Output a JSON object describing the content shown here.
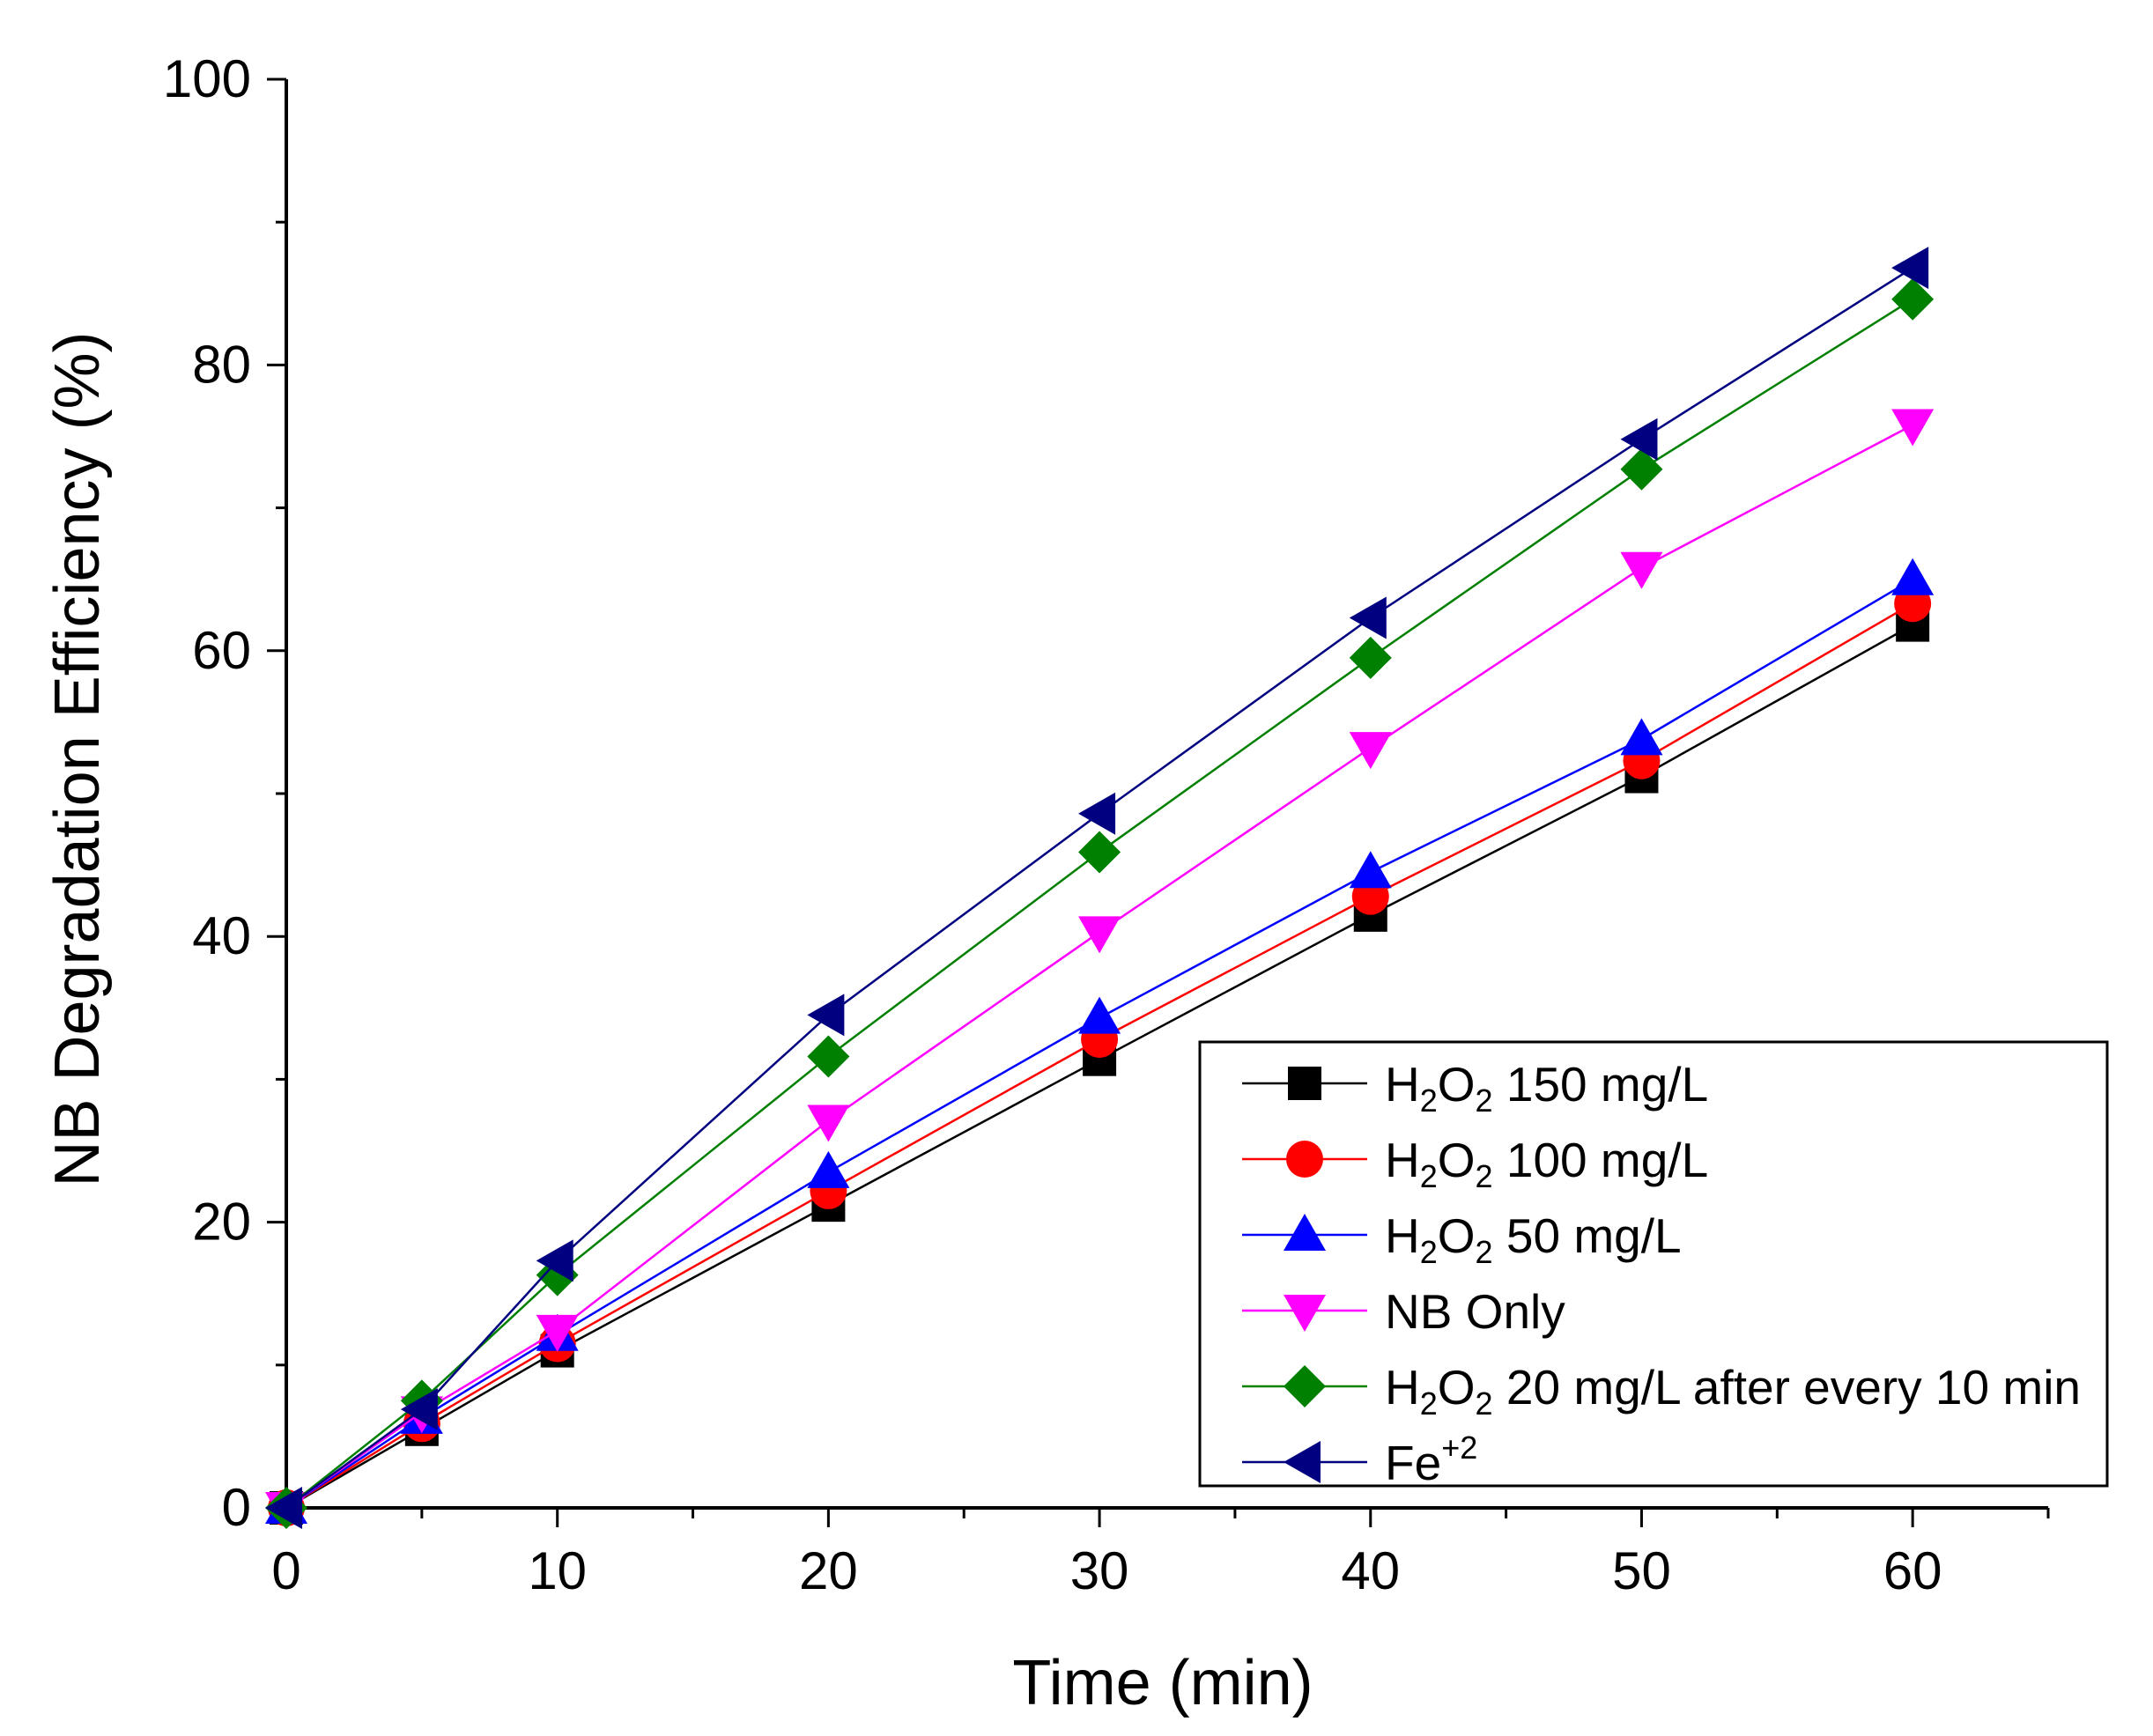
{
  "chart_data": {
    "type": "line",
    "title": "",
    "xlabel": "Time (min)",
    "ylabel": "NB Degradation Efficiency (%)",
    "xlim": [
      0,
      65
    ],
    "ylim": [
      0,
      100
    ],
    "xticks": [
      0,
      10,
      20,
      30,
      40,
      50,
      60
    ],
    "yticks": [
      0,
      20,
      40,
      60,
      80,
      100
    ],
    "grid": false,
    "legend_position": "bottom-right",
    "x": [
      0,
      5,
      10,
      20,
      30,
      40,
      50,
      60
    ],
    "series": [
      {
        "name": "H2O2 150 mg/L",
        "legend": {
          "parts": [
            {
              "t": "H"
            },
            {
              "t": "2",
              "sub": true
            },
            {
              "t": "O"
            },
            {
              "t": "2",
              "sub": true
            },
            {
              "t": " 150 mg/L"
            }
          ]
        },
        "marker": "square",
        "line_color": "#000000",
        "marker_color": "#000000",
        "values": [
          0,
          5.5,
          11,
          21.2,
          31.4,
          41.5,
          51.2,
          61.8
        ]
      },
      {
        "name": "H2O2 100 mg/L",
        "legend": {
          "parts": [
            {
              "t": "H"
            },
            {
              "t": "2",
              "sub": true
            },
            {
              "t": "O"
            },
            {
              "t": "2",
              "sub": true
            },
            {
              "t": " 100 mg/L"
            }
          ]
        },
        "marker": "circle",
        "line_color": "#ff0000",
        "marker_color": "#ff0000",
        "values": [
          0,
          5.9,
          11.5,
          22.2,
          32.8,
          42.8,
          52.3,
          63.3
        ]
      },
      {
        "name": "H2O2 50 mg/L",
        "legend": {
          "parts": [
            {
              "t": "H"
            },
            {
              "t": "2",
              "sub": true
            },
            {
              "t": "O"
            },
            {
              "t": "2",
              "sub": true
            },
            {
              "t": " 50 mg/L"
            }
          ]
        },
        "marker": "triangle-up",
        "line_color": "#0000ff",
        "marker_color": "#0000ff",
        "values": [
          0,
          6.3,
          12.1,
          23.5,
          34.3,
          44.5,
          53.8,
          65
        ]
      },
      {
        "name": "NB Only",
        "legend": {
          "parts": [
            {
              "t": "NB Only"
            }
          ]
        },
        "marker": "triangle-down",
        "line_color": "#ff00ff",
        "marker_color": "#ff00ff",
        "values": [
          0,
          6.7,
          12.4,
          27.1,
          40.3,
          53.2,
          65.8,
          75.8
        ]
      },
      {
        "name": "H2O2 20 mg/L after every 10 min",
        "legend": {
          "parts": [
            {
              "t": "H"
            },
            {
              "t": "2",
              "sub": true
            },
            {
              "t": "O"
            },
            {
              "t": "2",
              "sub": true
            },
            {
              "t": " 20 mg/L after every 10 min"
            }
          ]
        },
        "marker": "diamond",
        "line_color": "#008000",
        "marker_color": "#008000",
        "values": [
          0,
          7.5,
          16.3,
          31.6,
          45.9,
          59.5,
          72.7,
          84.6
        ]
      },
      {
        "name": "Fe+2",
        "legend": {
          "parts": [
            {
              "t": "Fe"
            },
            {
              "t": "+2",
              "sup": true
            }
          ]
        },
        "marker": "triangle-left",
        "line_color": "#000080",
        "marker_color": "#000080",
        "values": [
          0,
          6.9,
          17.3,
          34.5,
          48.6,
          62.3,
          74.8,
          86.8
        ]
      }
    ]
  }
}
